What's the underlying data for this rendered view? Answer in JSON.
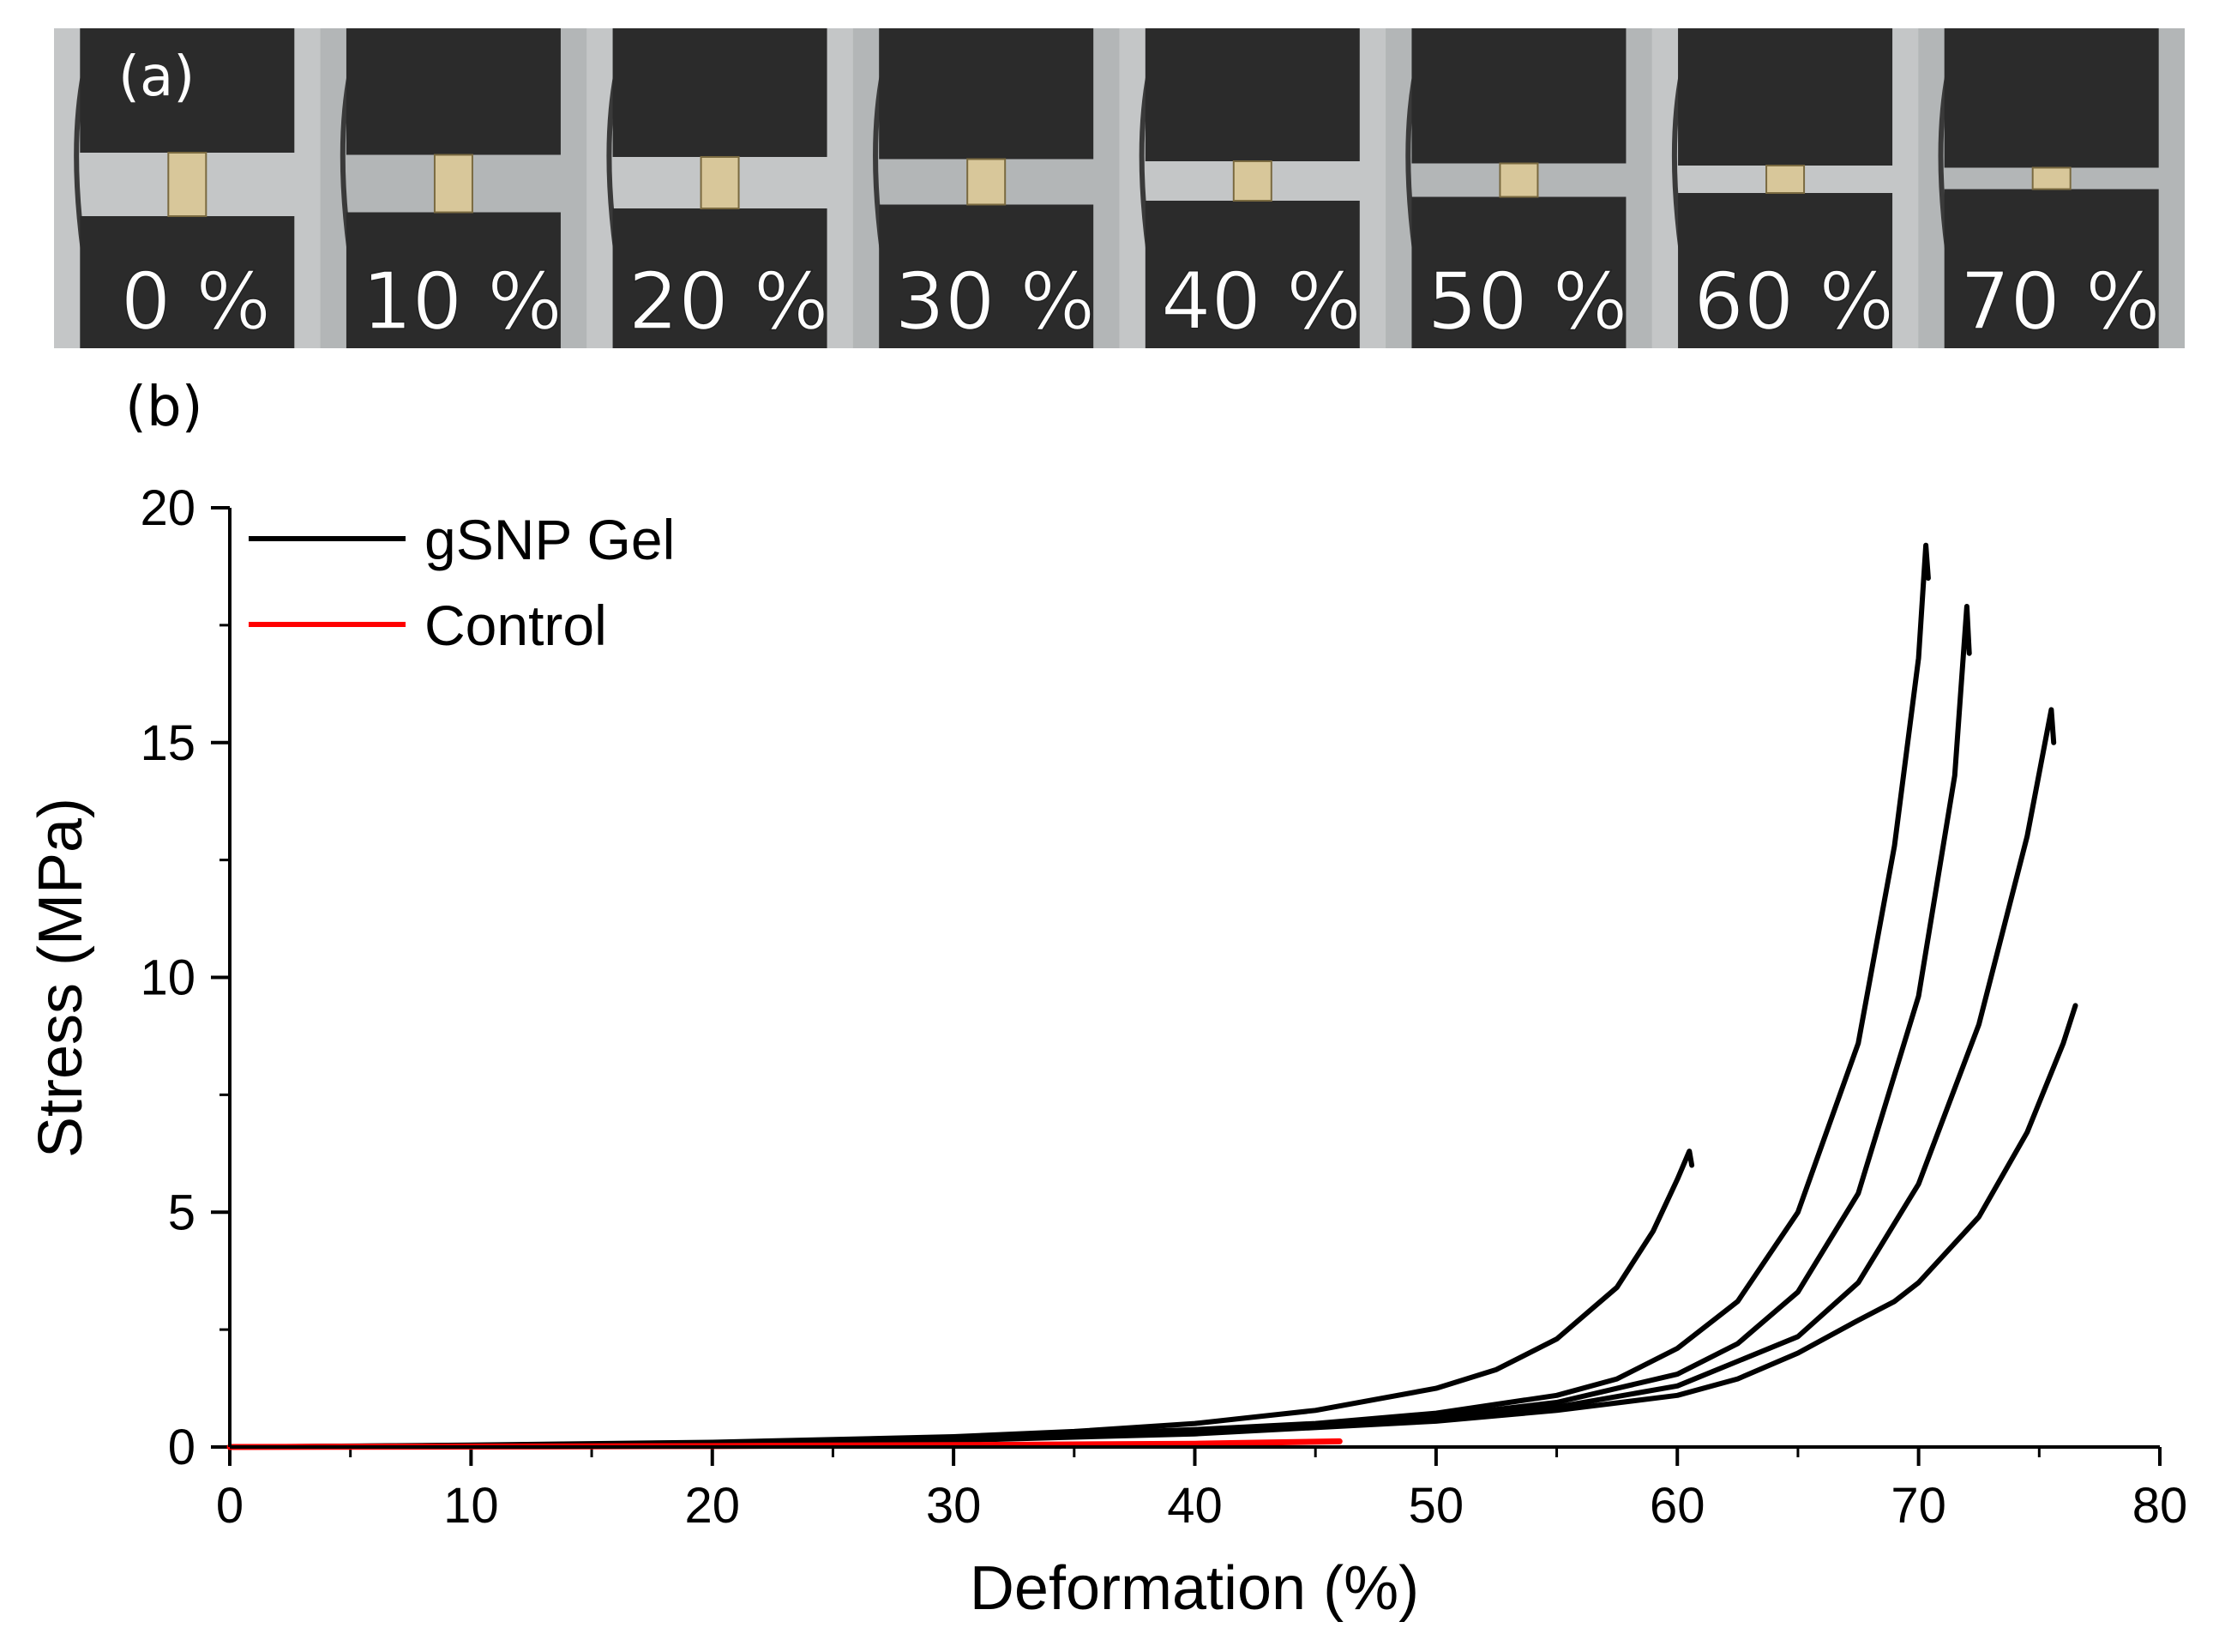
{
  "panel_a": {
    "label": "(a)",
    "frames": [
      "0 %",
      "10 %",
      "20 %",
      "30 %",
      "40 %",
      "50 %",
      "60 %",
      "70 %"
    ],
    "strain": [
      0,
      10,
      20,
      30,
      40,
      50,
      60,
      70
    ]
  },
  "panel_b": {
    "label": "(b)"
  },
  "colors": {
    "gel": "#000000",
    "control": "#ff0000",
    "cylinder": "#2b2b2b",
    "background": "#b9bcbd"
  },
  "chart_data": {
    "type": "line",
    "title": "",
    "xlabel": "Deformation (%)",
    "ylabel": "Stress (MPa)",
    "xlim": [
      0,
      80
    ],
    "ylim": [
      0,
      20
    ],
    "xticks": [
      0,
      10,
      20,
      30,
      40,
      50,
      60,
      70,
      80
    ],
    "yticks": [
      0,
      5,
      10,
      15,
      20
    ],
    "legend": {
      "placement": "top-left",
      "entries": [
        {
          "name": "gSNP Gel",
          "color": "#000000"
        },
        {
          "name": "Control",
          "color": "#ff0000"
        }
      ]
    },
    "series": [
      {
        "name": "gSNP Gel",
        "group": "gel",
        "color": "#000000",
        "x": [
          0,
          10,
          20,
          30,
          35,
          40,
          45,
          50,
          52.5,
          55,
          57.5,
          59,
          60,
          60.5,
          60.6
        ],
        "y": [
          0,
          0.04,
          0.1,
          0.22,
          0.33,
          0.5,
          0.78,
          1.25,
          1.65,
          2.3,
          3.4,
          4.6,
          5.7,
          6.3,
          6.0
        ]
      },
      {
        "name": "gSNP Gel",
        "group": "gel",
        "color": "#000000",
        "x": [
          0,
          10,
          20,
          30,
          40,
          45,
          50,
          55,
          57.5,
          60,
          62.5,
          65,
          67.5,
          69,
          70,
          70.3,
          70.4
        ],
        "y": [
          0,
          0.035,
          0.09,
          0.19,
          0.37,
          0.5,
          0.72,
          1.1,
          1.45,
          2.1,
          3.1,
          5.0,
          8.6,
          12.8,
          16.8,
          19.2,
          18.5
        ]
      },
      {
        "name": "gSNP Gel",
        "group": "gel",
        "color": "#000000",
        "x": [
          0,
          10,
          20,
          30,
          40,
          45,
          50,
          55,
          60,
          62.5,
          65,
          67.5,
          70,
          71.5,
          72,
          72.1
        ],
        "y": [
          0,
          0.03,
          0.08,
          0.17,
          0.33,
          0.46,
          0.65,
          0.95,
          1.55,
          2.2,
          3.3,
          5.4,
          9.6,
          14.3,
          17.9,
          16.9
        ]
      },
      {
        "name": "gSNP Gel",
        "group": "gel",
        "color": "#000000",
        "x": [
          0,
          10,
          20,
          30,
          40,
          50,
          55,
          60,
          65,
          67.5,
          70,
          72.5,
          74.5,
          75.5,
          75.6
        ],
        "y": [
          0,
          0.03,
          0.07,
          0.15,
          0.3,
          0.6,
          0.85,
          1.3,
          2.35,
          3.5,
          5.6,
          9.0,
          13.0,
          15.7,
          15.0
        ]
      },
      {
        "name": "gSNP Gel",
        "group": "gel",
        "color": "#000000",
        "x": [
          0,
          10,
          20,
          30,
          40,
          50,
          55,
          60,
          62.5,
          65,
          67.5,
          69,
          70,
          72.5,
          74.5,
          76,
          76.5
        ],
        "y": [
          0,
          0.03,
          0.07,
          0.14,
          0.28,
          0.55,
          0.78,
          1.1,
          1.45,
          2.0,
          2.7,
          3.1,
          3.5,
          4.9,
          6.7,
          8.6,
          9.4
        ]
      },
      {
        "name": "Control",
        "group": "control",
        "color": "#ff0000",
        "x": [
          0,
          10,
          20,
          30,
          40,
          46
        ],
        "y": [
          0,
          0.01,
          0.02,
          0.04,
          0.07,
          0.12
        ]
      }
    ]
  }
}
